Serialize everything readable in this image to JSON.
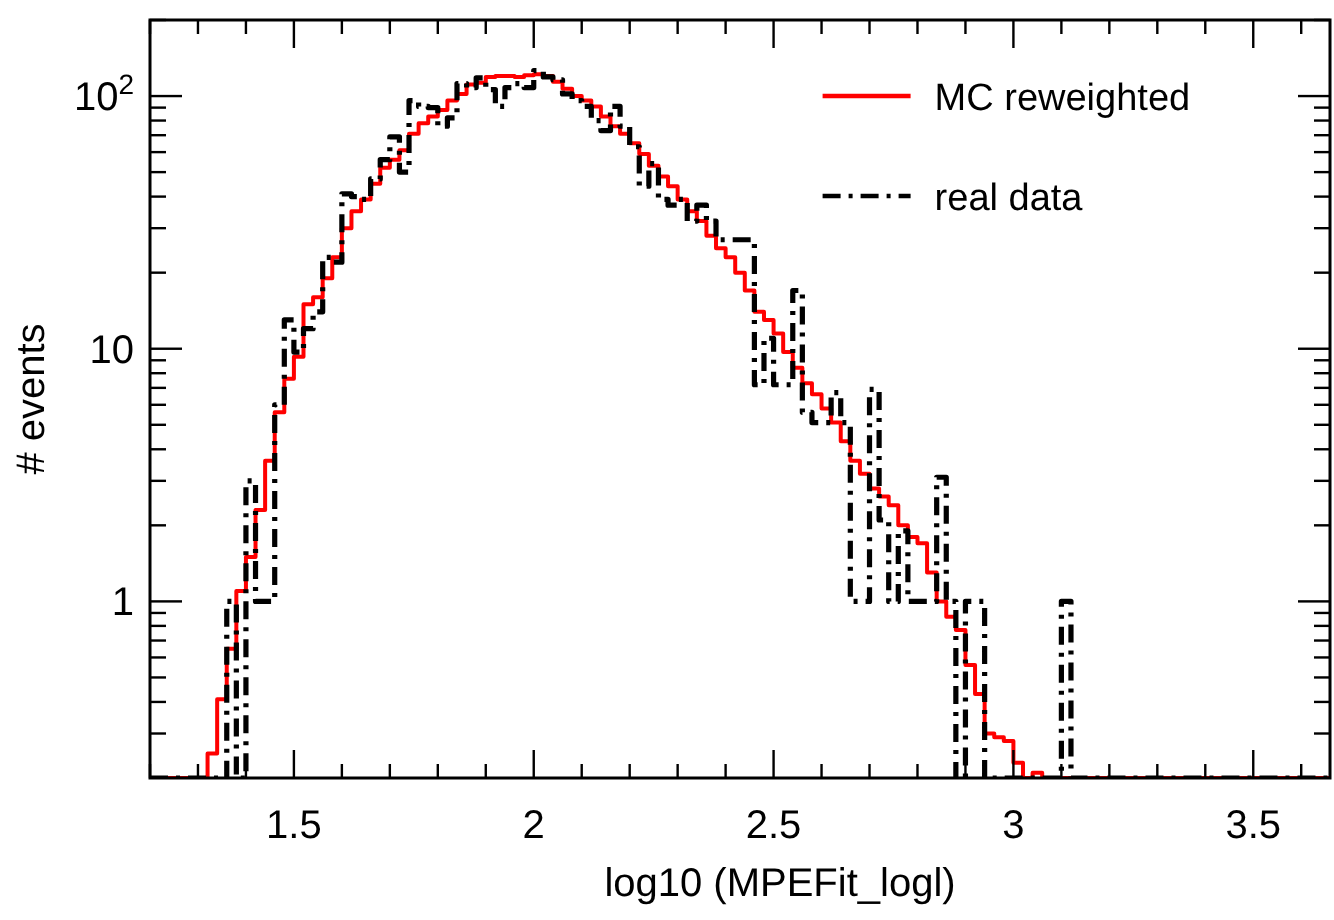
{
  "chart_data": {
    "type": "histogram",
    "xlabel": "log10 (MPEFit_logl)",
    "ylabel": "# events",
    "log": "y",
    "legend": "top right",
    "xlim": [
      1.2,
      3.66
    ],
    "ylim": [
      0.2,
      200
    ],
    "xticks": [
      {
        "value": 1.2,
        "label": null
      },
      {
        "value": 1.3,
        "label": null
      },
      {
        "value": 1.4,
        "label": null
      },
      1.5,
      {
        "value": 1.6,
        "label": null
      },
      {
        "value": 1.7,
        "label": null
      },
      {
        "value": 1.8,
        "label": null
      },
      {
        "value": 1.9,
        "label": null
      },
      2,
      {
        "value": 2.1,
        "label": null
      },
      {
        "value": 2.2,
        "label": null
      },
      {
        "value": 2.3,
        "label": null
      },
      {
        "value": 2.4,
        "label": null
      },
      2.5,
      {
        "value": 2.6,
        "label": null
      },
      {
        "value": 2.7,
        "label": null
      },
      {
        "value": 2.8,
        "label": null
      },
      {
        "value": 2.9,
        "label": null
      },
      3,
      {
        "value": 3.1,
        "label": null
      },
      {
        "value": 3.2,
        "label": null
      },
      {
        "value": 3.3,
        "label": null
      },
      {
        "value": 3.4,
        "label": null
      },
      3.5,
      {
        "value": 3.6,
        "label": null
      }
    ],
    "yticks": [
      {
        "value": 0.3,
        "label": null
      },
      {
        "value": 0.4,
        "label": null
      },
      {
        "value": 0.5,
        "label": null
      },
      {
        "value": 0.6,
        "label": null
      },
      {
        "value": 0.7,
        "label": null
      },
      {
        "value": 0.8,
        "label": null
      },
      {
        "value": 0.9,
        "label": null
      },
      1,
      {
        "value": 2,
        "label": null
      },
      {
        "value": 3,
        "label": null
      },
      {
        "value": 4,
        "label": null
      },
      {
        "value": 5,
        "label": null
      },
      {
        "value": 6,
        "label": null
      },
      {
        "value": 7,
        "label": null
      },
      {
        "value": 8,
        "label": null
      },
      {
        "value": 9,
        "label": null
      },
      10,
      {
        "value": 20,
        "label": null
      },
      {
        "value": 30,
        "label": null
      },
      {
        "value": 40,
        "label": null
      },
      {
        "value": 50,
        "label": null
      },
      {
        "value": 60,
        "label": null
      },
      {
        "value": 70,
        "label": null
      },
      {
        "value": 80,
        "label": null
      },
      {
        "value": 90,
        "label": null
      },
      {
        "value": 100,
        "label": "10$^{2}$"
      },
      {
        "value": 200,
        "label": null
      }
    ],
    "bins": [
      1.2,
      1.22,
      1.24,
      1.26,
      1.28,
      1.3,
      1.32,
      1.34,
      1.36,
      1.38,
      1.4,
      1.42,
      1.44,
      1.46,
      1.48,
      1.5,
      1.52,
      1.54,
      1.56,
      1.58,
      1.6,
      1.62,
      1.64,
      1.66,
      1.68,
      1.7,
      1.72,
      1.74,
      1.76,
      1.78,
      1.8,
      1.82,
      1.84,
      1.86,
      1.88,
      1.9,
      1.92,
      1.94,
      1.96,
      1.98,
      2,
      2.02,
      2.04,
      2.06,
      2.08,
      2.1,
      2.12,
      2.14,
      2.16,
      2.18,
      2.2,
      2.22,
      2.24,
      2.26,
      2.28,
      2.3,
      2.32,
      2.34,
      2.36,
      2.38,
      2.4,
      2.42,
      2.44,
      2.46,
      2.48,
      2.5,
      2.52,
      2.54,
      2.56,
      2.58,
      2.6,
      2.62,
      2.64,
      2.66,
      2.68,
      2.7,
      2.72,
      2.74,
      2.76,
      2.78,
      2.8,
      2.82,
      2.84,
      2.86,
      2.88,
      2.9,
      2.92,
      2.94,
      2.96,
      2.98,
      3,
      3.02,
      3.04,
      3.06,
      3.08,
      3.1,
      3.12,
      3.14,
      3.16,
      3.18,
      3.2,
      3.22,
      3.24,
      3.26,
      3.28,
      3.3,
      3.32,
      3.34,
      3.36,
      3.38,
      3.4,
      3.42,
      3.44,
      3.46,
      3.48,
      3.5,
      3.52,
      3.54,
      3.56,
      3.58,
      3.6,
      3.62,
      3.64,
      3.66
    ],
    "series": [
      {
        "name": "MC reweighted",
        "color": "#ff0000",
        "line_style": "solid",
        "values": [
          null,
          null,
          null,
          null,
          null,
          null,
          0.25,
          0.41,
          0.65,
          1.1,
          1.5,
          2.3,
          3.6,
          5.6,
          7.6,
          9.3,
          15,
          16,
          19,
          23,
          30,
          35,
          39,
          45,
          52,
          56,
          61,
          71,
          78,
          83,
          88,
          96,
          102,
          111,
          113,
          119,
          120,
          120,
          119,
          121,
          122,
          120,
          114,
          107,
          100,
          96,
          91,
          83,
          76,
          71,
          65,
          59,
          53,
          48,
          44,
          39,
          35,
          32,
          28,
          25,
          23,
          20,
          17,
          14,
          13,
          11.5,
          9.7,
          8.4,
          7.3,
          6.6,
          5.8,
          5.1,
          4.3,
          3.6,
          3.2,
          2.8,
          2.6,
          2.4,
          2.0,
          1.8,
          1.7,
          1.3,
          1.0,
          0.87,
          0.77,
          0.56,
          0.43,
          0.3,
          0.29,
          0.28,
          0.23,
          null,
          0.21,
          null,
          null,
          null,
          null,
          null,
          null,
          null,
          null,
          null,
          null,
          null,
          null,
          null,
          null,
          null,
          null,
          null,
          null,
          null,
          null,
          null,
          null,
          null,
          null,
          null,
          null,
          null,
          null,
          null,
          null
        ]
      },
      {
        "name": "real data",
        "color": "#000000",
        "line_style": "dashdot",
        "values": [
          null,
          null,
          null,
          null,
          null,
          null,
          null,
          null,
          1,
          null,
          3,
          1,
          1,
          6,
          13,
          9.7,
          12,
          14,
          23,
          22,
          41,
          40,
          39,
          47,
          56,
          69,
          50,
          96,
          91,
          90,
          76,
          82,
          112,
          108,
          118,
          106,
          91,
          108,
          112,
          108,
          126,
          119,
          116,
          102,
          96,
          91,
          80,
          73,
          91,
          76,
          63,
          44,
          54,
          39,
          37,
          39,
          32,
          37,
          32,
          27,
          27,
          27,
          27,
          7.2,
          11,
          7.2,
          7.2,
          17,
          5.6,
          5.1,
          5.1,
          6.7,
          5.1,
          1,
          1,
          6.9,
          2.1,
          1,
          1.9,
          1,
          1,
          1,
          3.1,
          1,
          null,
          1,
          1,
          null,
          null,
          null,
          null,
          null,
          null,
          null,
          null,
          1,
          null,
          null,
          null,
          null,
          null,
          null,
          null,
          null,
          null,
          null,
          null,
          null,
          null,
          null,
          null,
          null,
          null,
          null,
          null,
          null,
          null,
          null,
          null,
          null,
          null,
          null,
          null
        ]
      }
    ]
  }
}
